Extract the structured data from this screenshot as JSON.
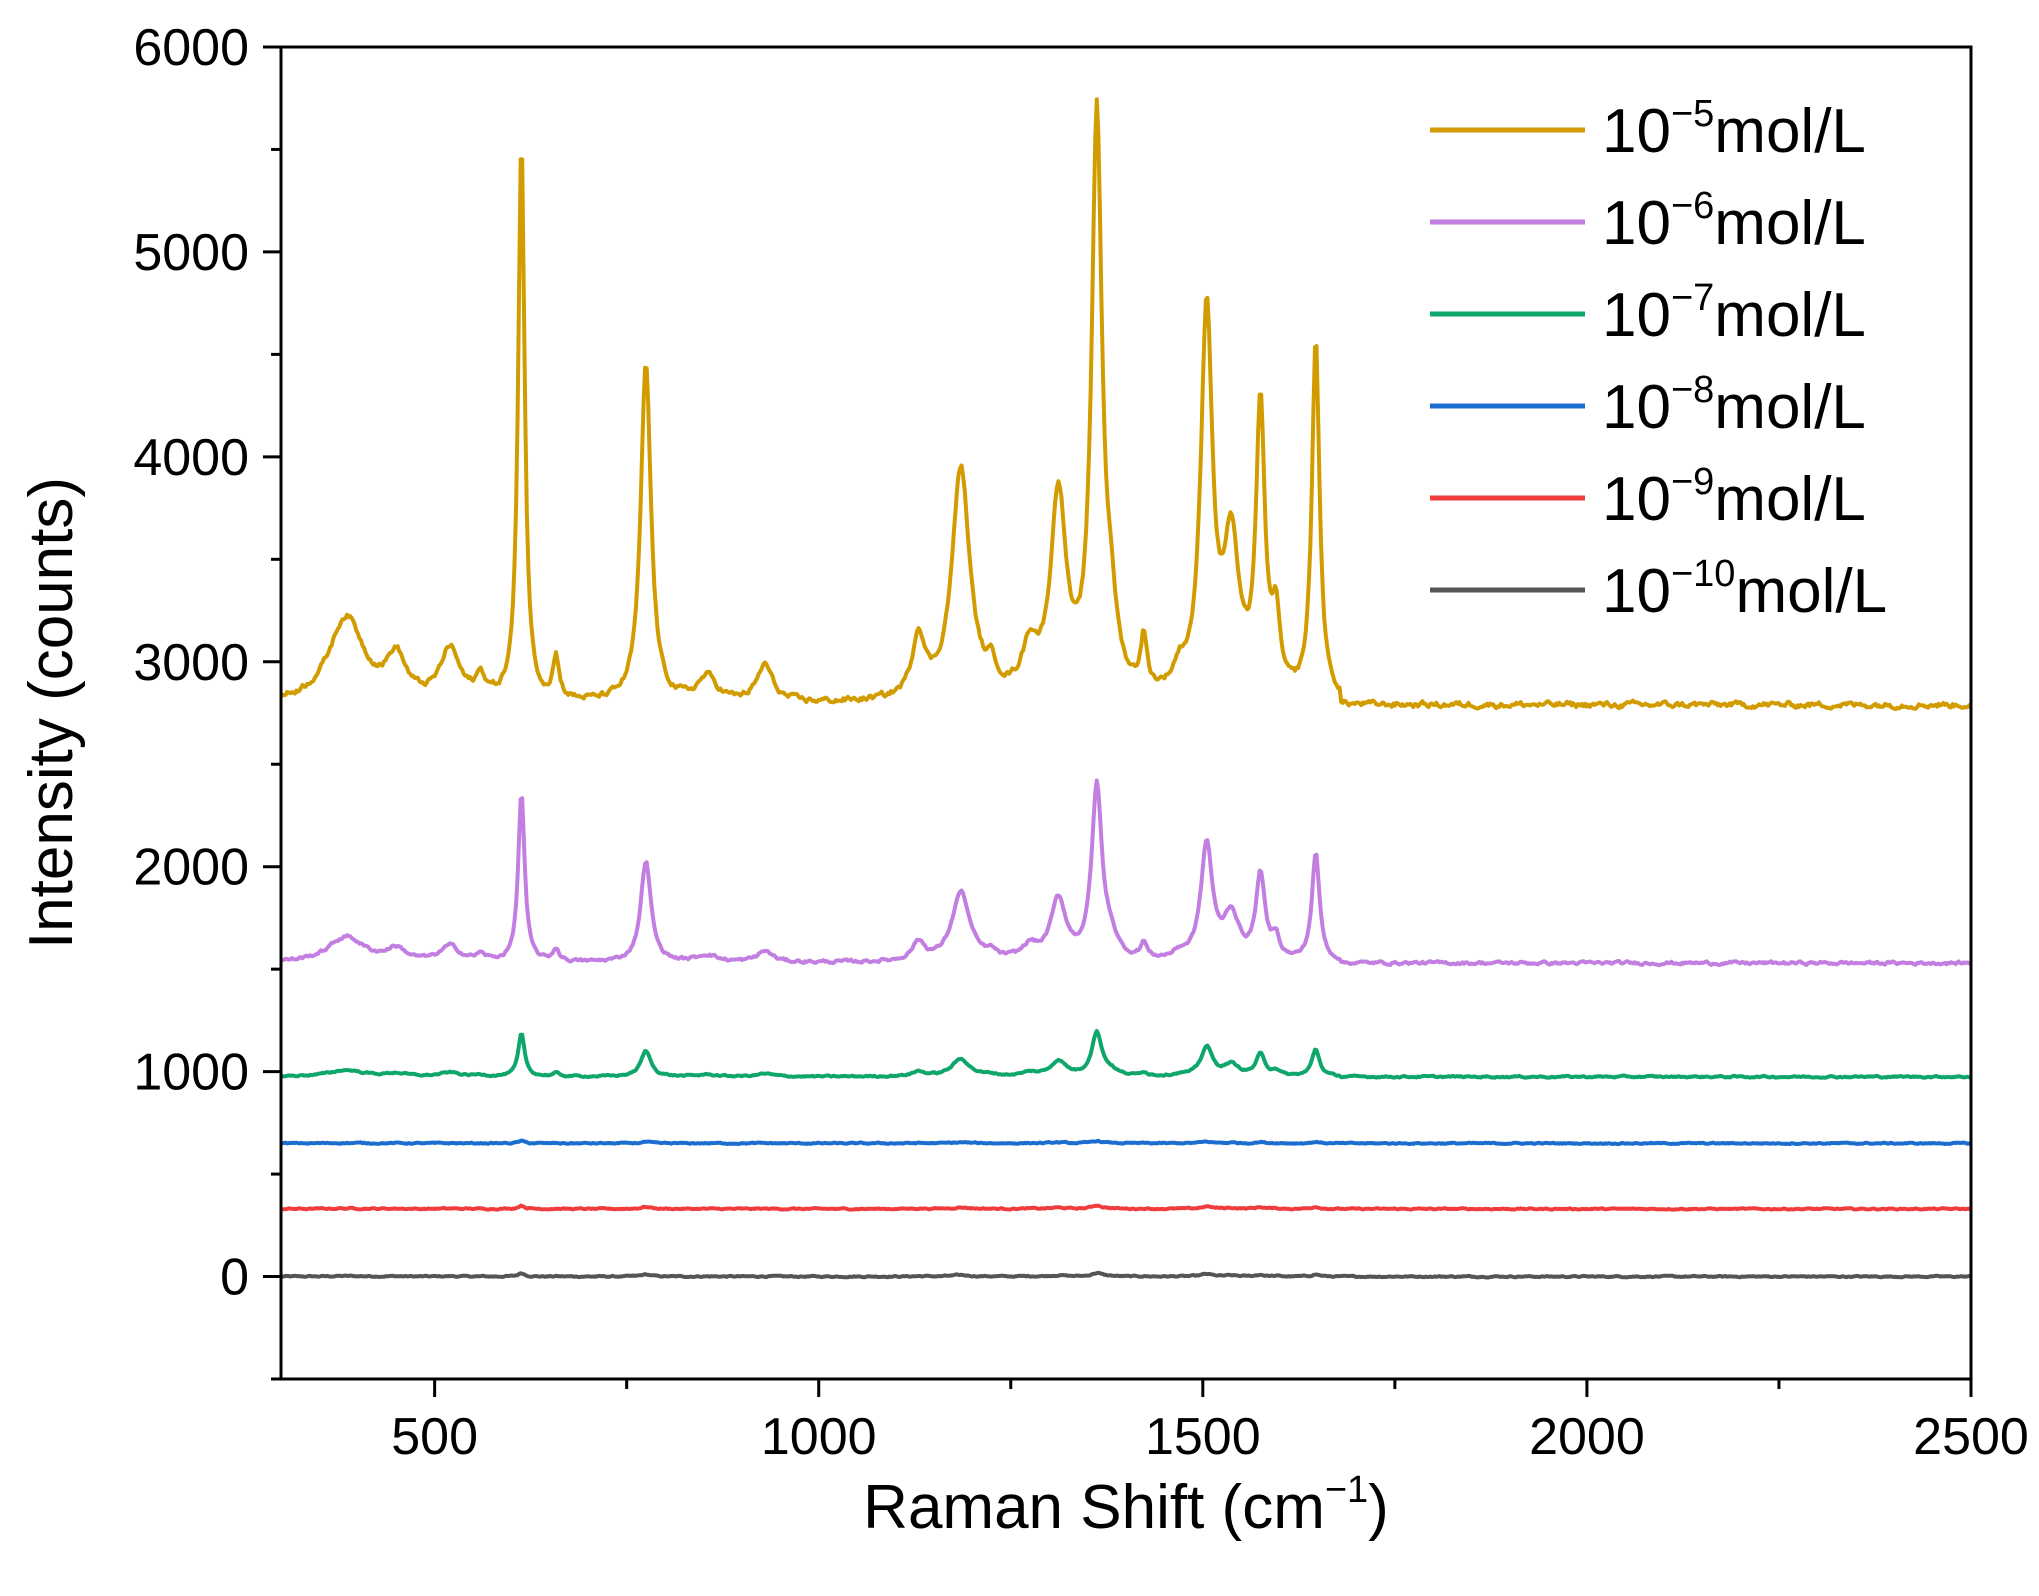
{
  "chart_data": {
    "type": "line",
    "title": "",
    "xlabel": "Raman Shift (cm",
    "xlabel_sup": "−1",
    "xlabel_tail": ")",
    "ylabel": "Intensity (counts)",
    "xlim": [
      300,
      2500
    ],
    "ylim": [
      -500,
      6000
    ],
    "x_ticks": [
      500,
      1000,
      1500,
      2000,
      2500
    ],
    "x_tick_labels": [
      "500",
      "1000",
      "1500",
      "2000",
      "2500"
    ],
    "y_ticks": [
      0,
      1000,
      2000,
      3000,
      4000,
      5000,
      6000
    ],
    "y_tick_labels": [
      "0",
      "1000",
      "2000",
      "3000",
      "4000",
      "5000",
      "6000"
    ],
    "legend_position": "top-right",
    "peaks": [
      {
        "x": 385,
        "h": 420,
        "w": 28
      },
      {
        "x": 450,
        "h": 200,
        "w": 15
      },
      {
        "x": 520,
        "h": 250,
        "w": 15
      },
      {
        "x": 560,
        "h": 100,
        "w": 8
      },
      {
        "x": 613,
        "h": 2750,
        "w": 5
      },
      {
        "x": 658,
        "h": 200,
        "w": 5
      },
      {
        "x": 775,
        "h": 1650,
        "w": 8
      },
      {
        "x": 855,
        "h": 120,
        "w": 15
      },
      {
        "x": 930,
        "h": 180,
        "w": 12
      },
      {
        "x": 1130,
        "h": 300,
        "w": 10
      },
      {
        "x": 1185,
        "h": 1130,
        "w": 14
      },
      {
        "x": 1225,
        "h": 100,
        "w": 8
      },
      {
        "x": 1275,
        "h": 220,
        "w": 12
      },
      {
        "x": 1312,
        "h": 980,
        "w": 12
      },
      {
        "x": 1362,
        "h": 2800,
        "w": 8
      },
      {
        "x": 1380,
        "h": 300,
        "w": 10
      },
      {
        "x": 1423,
        "h": 250,
        "w": 5
      },
      {
        "x": 1470,
        "h": 100,
        "w": 10
      },
      {
        "x": 1505,
        "h": 1880,
        "w": 9
      },
      {
        "x": 1537,
        "h": 730,
        "w": 12
      },
      {
        "x": 1575,
        "h": 1380,
        "w": 7
      },
      {
        "x": 1595,
        "h": 350,
        "w": 6
      },
      {
        "x": 1647,
        "h": 1750,
        "w": 6
      }
    ],
    "series": [
      {
        "name": "10",
        "sup": "−5",
        "unit": "mol/L",
        "color": "#D29C00",
        "baseline": 2790,
        "scale": 1.0,
        "noise": 28
      },
      {
        "name": "10",
        "sup": "−6",
        "unit": "mol/L",
        "color": "#C27EE0",
        "baseline": 1530,
        "scale": 0.3,
        "noise": 15
      },
      {
        "name": "10",
        "sup": "−7",
        "unit": "mol/L",
        "color": "#0FA66C",
        "baseline": 975,
        "scale": 0.075,
        "noise": 8
      },
      {
        "name": "10",
        "sup": "−8",
        "unit": "mol/L",
        "color": "#1C6DD0",
        "baseline": 650,
        "scale": 0.004,
        "noise": 6
      },
      {
        "name": "10",
        "sup": "−9",
        "unit": "mol/L",
        "color": "#F03C3C",
        "baseline": 330,
        "scale": 0.006,
        "noise": 6
      },
      {
        "name": "10",
        "sup": "−10",
        "unit": "mol/L",
        "color": "#555555",
        "baseline": 0,
        "scale": 0.006,
        "noise": 6
      }
    ]
  }
}
